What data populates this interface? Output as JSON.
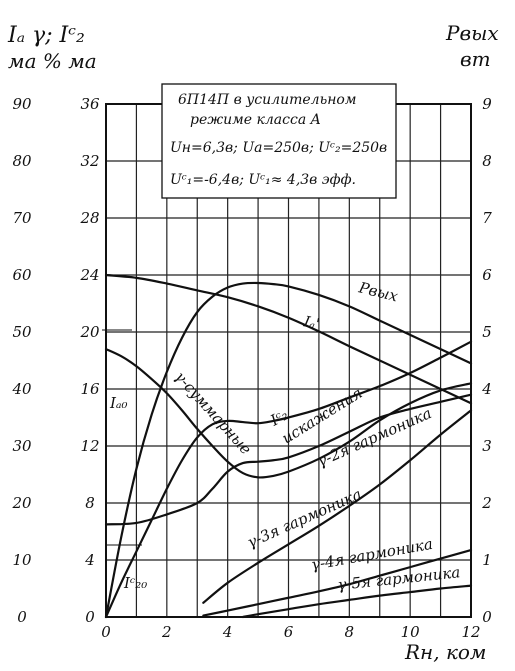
{
  "chart_data": {
    "type": "line",
    "header": {
      "left_quantities": "Iₐ  γ; Iᶜ₂",
      "left_units": "ма %  ма",
      "right_quantity": "Pвых",
      "right_unit": "вт"
    },
    "info_box": [
      "6П14П в усилительном",
      "режиме класса A",
      "Uн=6,3в; Uа=250в; Uᶜ₂=250в",
      "Uᶜ₁=-6,4в; Uᶜ₁≈ 4,3в эфф."
    ],
    "xlabel": "Rн, ком",
    "x_ticks": [
      "0",
      "2",
      "4",
      "6",
      "8",
      "10",
      "12"
    ],
    "xlim": [
      0,
      12
    ],
    "axis_ia_ticks": [
      "0",
      "10",
      "20",
      "30",
      "40",
      "50",
      "60",
      "70",
      "80",
      "90"
    ],
    "axis_ia_range": [
      0,
      90
    ],
    "axis_pct_ticks": [
      "0",
      "4",
      "8",
      "12",
      "16",
      "20",
      "24",
      "28",
      "32",
      "36"
    ],
    "axis_pct_range": [
      0,
      36
    ],
    "axis_p_ticks": [
      "0",
      "1",
      "2",
      "3",
      "4",
      "5",
      "6",
      "7",
      "8",
      "9"
    ],
    "axis_p_range": [
      0,
      9
    ],
    "ia0_label": "Iₐ₀",
    "ic20_label": "Iᶜ₂₀",
    "series": [
      {
        "name": "Pвых",
        "scale": "watts",
        "x": [
          0,
          0.5,
          1,
          1.5,
          2,
          2.5,
          3,
          3.5,
          4,
          4.5,
          5,
          5.5,
          6,
          7,
          8,
          9,
          10,
          11,
          12
        ],
        "y": [
          0,
          1.4,
          2.6,
          3.55,
          4.3,
          4.9,
          5.35,
          5.62,
          5.78,
          5.85,
          5.86,
          5.84,
          5.8,
          5.65,
          5.45,
          5.2,
          4.95,
          4.7,
          4.45
        ]
      },
      {
        "name": "Iₐ'",
        "scale": "ma",
        "x": [
          0,
          1,
          2,
          3,
          4,
          5,
          6,
          7,
          8,
          9,
          10,
          11,
          12
        ],
        "y": [
          60,
          59.5,
          58.5,
          57.3,
          56.1,
          54.5,
          52.5,
          50.1,
          47.5,
          45,
          42.5,
          40,
          37.5
        ]
      },
      {
        "name": "γ-суммарные",
        "scale": "percent",
        "x": [
          0,
          0.5,
          1,
          1.5,
          2,
          2.5,
          3,
          3.5,
          4,
          4.5,
          5,
          5.5,
          6,
          7,
          8,
          9,
          10,
          11,
          12
        ],
        "y": [
          18.8,
          18.3,
          17.6,
          16.7,
          15.7,
          14.5,
          13.2,
          12,
          10.9,
          10.1,
          9.8,
          9.9,
          10.2,
          11.1,
          12.3,
          13.8,
          15,
          15.9,
          16.4
        ]
      },
      {
        "name": "Iᶜ₂",
        "scale": "ma",
        "x": [
          0,
          0.5,
          1,
          1.5,
          2,
          2.5,
          3,
          3.5,
          4,
          4.5,
          5,
          5.5,
          6,
          7,
          8,
          9,
          10,
          11,
          12
        ],
        "y": [
          0,
          6,
          11.5,
          17,
          22.5,
          27.5,
          31.5,
          33.8,
          34.4,
          34.2,
          34,
          34.4,
          35,
          36.5,
          38.5,
          40.5,
          42.8,
          45.5,
          48.3
        ]
      },
      {
        "name": "γ-2я гармоника",
        "scale": "percent",
        "x": [
          0,
          1,
          2,
          3,
          3.5,
          4,
          4.5,
          5,
          5.5,
          6,
          7,
          8,
          9,
          10,
          11,
          12
        ],
        "y": [
          6.5,
          6.6,
          7.2,
          8,
          9,
          10.2,
          10.8,
          10.9,
          11,
          11.2,
          12,
          13,
          14,
          14.6,
          15.1,
          15.6
        ],
        "label": "γ-2я гармоника"
      },
      {
        "name": "γ-3я гармоника",
        "scale": "percent",
        "x": [
          3.2,
          4,
          5,
          6,
          7,
          8,
          9,
          10,
          11,
          12
        ],
        "y": [
          1.0,
          2.4,
          3.8,
          5.1,
          6.4,
          7.8,
          9.3,
          11,
          12.8,
          14.5
        ]
      },
      {
        "name": "γ-4я гармоника",
        "scale": "percent",
        "x": [
          3.2,
          4,
          5,
          6,
          7,
          8,
          9,
          10,
          11,
          12
        ],
        "y": [
          0.1,
          0.45,
          0.9,
          1.35,
          1.8,
          2.3,
          2.9,
          3.5,
          4.1,
          4.7
        ]
      },
      {
        "name": "γ-5я гармоника",
        "scale": "percent",
        "x": [
          4.5,
          5,
          6,
          7,
          8,
          9,
          10,
          11,
          12
        ],
        "y": [
          0,
          0.2,
          0.55,
          0.9,
          1.2,
          1.5,
          1.75,
          2.0,
          2.2
        ]
      }
    ],
    "annotations": {
      "p_vyx_label": "Pвых",
      "ia_label": "Iₐ'",
      "summary_label": "γ-суммарные",
      "ic2_label": "Iᶜ₂",
      "distortion_label": "искажения",
      "h2_label": "γ-2я гармоника",
      "h3_label": "γ-3я гармоника",
      "h4_label": "γ-4я гармоника",
      "h5_label": "γ-5я гармоника"
    },
    "grid": true
  }
}
